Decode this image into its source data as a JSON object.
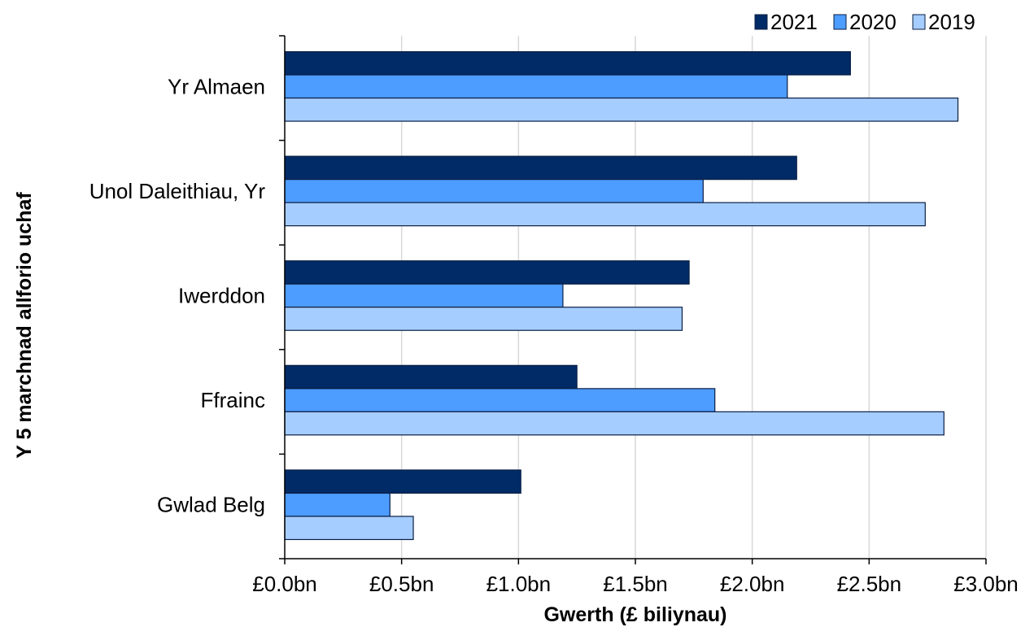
{
  "chart_data": {
    "type": "bar",
    "orientation": "horizontal",
    "categories": [
      "Yr Almaen",
      "Unol Daleithiau, Yr",
      "Iwerddon",
      "Ffrainc",
      "Gwlad Belg"
    ],
    "series": [
      {
        "name": "2021",
        "color": "#002b66",
        "values": [
          2.42,
          2.19,
          1.73,
          1.25,
          1.01
        ]
      },
      {
        "name": "2020",
        "color": "#4d9cff",
        "values": [
          2.15,
          1.79,
          1.19,
          1.84,
          0.45
        ]
      },
      {
        "name": "2019",
        "color": "#a6cdff",
        "values": [
          2.88,
          2.74,
          1.7,
          2.82,
          0.55
        ]
      }
    ],
    "x_ticks": [
      "£0.0bn",
      "£0.5bn",
      "£1.0bn",
      "£1.5bn",
      "£2.0bn",
      "£2.5bn",
      "£3.0bn"
    ],
    "xlim": [
      0,
      3.0
    ],
    "xlabel": "Gwerth (£ biliynau)",
    "ylabel": "Y 5 marchnad allforio uchaf",
    "grid": "vertical",
    "legend_position": "top-right",
    "legend_order": [
      "2021",
      "2020",
      "2019"
    ]
  }
}
